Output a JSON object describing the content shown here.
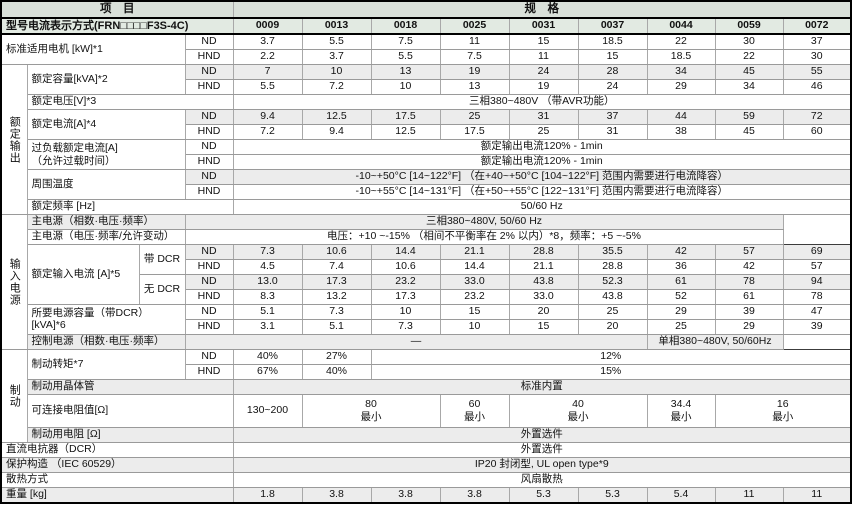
{
  "header": {
    "item_label": "项　目",
    "spec_label": "规　格"
  },
  "model_row": {
    "label": "型号电流表示方式(FRN□□□□F3S-4C)",
    "models": [
      "0009",
      "0013",
      "0018",
      "0025",
      "0031",
      "0037",
      "0044",
      "0059",
      "0072"
    ]
  },
  "sections": {
    "output": "额定输出",
    "input": "输入电源",
    "brake": "制动"
  },
  "nd_label": "ND",
  "hnd_label": "HND",
  "rows": {
    "motor": {
      "label": "标准适用电机 [kW]*1",
      "nd": [
        "3.7",
        "5.5",
        "7.5",
        "11",
        "15",
        "18.5",
        "22",
        "30",
        "37"
      ],
      "hnd": [
        "2.2",
        "3.7",
        "5.5",
        "7.5",
        "11",
        "15",
        "18.5",
        "22",
        "30"
      ]
    },
    "capacity": {
      "label": "额定容量[kVA]*2",
      "nd": [
        "7",
        "10",
        "13",
        "19",
        "24",
        "28",
        "34",
        "45",
        "55"
      ],
      "hnd": [
        "5.5",
        "7.2",
        "10",
        "13",
        "19",
        "24",
        "29",
        "34",
        "46"
      ]
    },
    "voltage": {
      "label": "额定电压[V]*3",
      "value": "三相380~480V （带AVR功能）"
    },
    "current": {
      "label": "额定电流[A]*4",
      "nd": [
        "9.4",
        "12.5",
        "17.5",
        "25",
        "31",
        "37",
        "44",
        "59",
        "72"
      ],
      "hnd": [
        "7.2",
        "9.4",
        "12.5",
        "17.5",
        "25",
        "31",
        "38",
        "45",
        "60"
      ]
    },
    "overload": {
      "label": "过负载额定电流[A]",
      "label2": "（允许过载时间）",
      "nd": "额定输出电流120% - 1min",
      "hnd": "额定输出电流120% - 1min"
    },
    "ambient": {
      "label": "周围温度",
      "nd": "-10~+50°C [14~122°F] （在+40~+50°C [104~122°F] 范围内需要进行电流降容）",
      "hnd": "-10~+55°C [14~131°F] （在+50~+55°C [122~131°F] 范围内需要进行电流降容）"
    },
    "frequency": {
      "label": "额定频率 [Hz]",
      "value": "50/60 Hz"
    },
    "mains_phase": {
      "label": "主电源（相数·电压·频率）",
      "value": "三相380~480V, 50/60 Hz"
    },
    "mains_tolerance": {
      "label": "主电源（电压·频率/允许变动）",
      "value": "电压：+10 ~-15% （相间不平衡率在 2% 以内）*8，频率：+5 ~-5%"
    },
    "input_current": {
      "label": "额定输入电流 [A]*5",
      "with_dcr": "带 DCR",
      "without_dcr": "无 DCR",
      "with_dcr_nd": [
        "7.3",
        "10.6",
        "14.4",
        "21.1",
        "28.8",
        "35.5",
        "42",
        "57",
        "69"
      ],
      "with_dcr_hnd": [
        "4.5",
        "7.4",
        "10.6",
        "14.4",
        "21.1",
        "28.8",
        "36",
        "42",
        "57"
      ],
      "without_dcr_nd": [
        "13.0",
        "17.3",
        "23.2",
        "33.0",
        "43.8",
        "52.3",
        "61",
        "78",
        "94"
      ],
      "without_dcr_hnd": [
        "8.3",
        "13.2",
        "17.3",
        "23.2",
        "33.0",
        "43.8",
        "52",
        "61",
        "78"
      ]
    },
    "required_capacity": {
      "label": "所要电源容量（带DCR）[kVA]*6",
      "nd": [
        "5.1",
        "7.3",
        "10",
        "15",
        "20",
        "25",
        "29",
        "39",
        "47"
      ],
      "hnd": [
        "3.1",
        "5.1",
        "7.3",
        "10",
        "15",
        "20",
        "25",
        "29",
        "39"
      ]
    },
    "control_power": {
      "label": "控制电源（相数·电压·频率）",
      "values": [
        "—",
        "单相380~480V, 50/60Hz"
      ]
    },
    "braking_torque": {
      "label": "制动转矩*7",
      "nd": [
        "40%",
        "27%",
        "12%"
      ],
      "hnd": [
        "67%",
        "40%",
        "15%"
      ]
    },
    "braking_transistor": {
      "label": "制动用晶体管",
      "value": "标准内置"
    },
    "resistance": {
      "label": "可连接电阻值[Ω]",
      "cells": [
        {
          "v": "130~200",
          "sub": ""
        },
        {
          "v": "80",
          "sub": "最小"
        },
        {
          "v": "60",
          "sub": "最小"
        },
        {
          "v": "40",
          "sub": "最小"
        },
        {
          "v": "34.4",
          "sub": "最小"
        },
        {
          "v": "16",
          "sub": "最小"
        }
      ]
    },
    "braking_resistor": {
      "label": "制动用电阻 [Ω]",
      "value": "外置选件"
    },
    "dc_reactor": {
      "label": "直流电抗器（DCR）",
      "value": "外置选件"
    },
    "protection": {
      "label": "保护构造 （IEC 60529）",
      "value": "IP20 封闭型, UL open type*9"
    },
    "cooling": {
      "label": "散热方式",
      "value": "风扇散热"
    },
    "weight": {
      "label": "重量 [kg]",
      "values": [
        "1.8",
        "3.8",
        "3.8",
        "3.8",
        "5.3",
        "5.3",
        "5.4",
        "11",
        "11"
      ]
    }
  }
}
